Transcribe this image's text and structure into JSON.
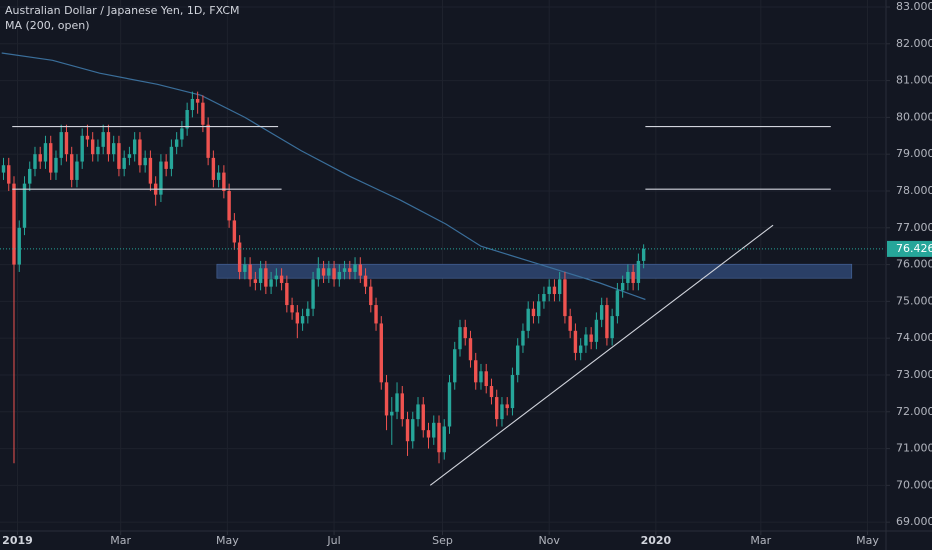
{
  "chart_data": {
    "type": "candlestick",
    "title": "Australian Dollar / Japanese Yen, 1D, FXCM",
    "indicators": [
      {
        "name": "MA (200, open)",
        "color": "#3a6e9a",
        "x": [
          -9,
          20,
          47,
          80,
          105,
          130,
          162,
          190,
          219,
          245,
          265,
          299,
          333,
          359
        ],
        "values": [
          81.75,
          81.55,
          81.2,
          80.9,
          80.6,
          80.0,
          79.1,
          78.4,
          77.75,
          77.1,
          76.5,
          76.0,
          75.5,
          75.05
        ]
      }
    ],
    "up_color": "#26a69a",
    "down_color": "#ef5350",
    "x": [
      -8,
      -5,
      -2,
      1,
      4,
      7,
      10,
      13,
      16,
      19,
      22,
      25,
      28,
      31,
      34,
      37,
      40,
      43,
      46,
      49,
      52,
      55,
      58,
      61,
      64,
      67,
      70,
      73,
      76,
      79,
      82,
      85,
      88,
      91,
      94,
      97,
      100,
      103,
      106,
      109,
      112,
      115,
      118,
      121,
      124,
      127,
      130,
      133,
      136,
      139,
      142,
      145,
      148,
      151,
      154,
      157,
      160,
      163,
      166,
      169,
      172,
      175,
      178,
      181,
      184,
      187,
      190,
      193,
      196,
      199,
      202,
      205,
      208,
      211,
      214,
      217,
      220,
      223,
      226,
      229,
      232,
      235,
      238,
      241,
      244,
      247,
      250,
      253,
      256,
      259,
      262,
      265,
      268,
      271,
      274,
      277,
      280,
      283,
      286,
      289,
      292,
      295,
      298,
      301,
      304,
      307,
      310,
      313,
      316,
      319,
      322,
      325,
      328,
      331,
      334,
      337,
      340,
      343,
      346,
      349,
      352,
      355,
      358
    ],
    "open": [
      78.5,
      78.7,
      78.2,
      76.0,
      77.0,
      78.2,
      78.6,
      79.0,
      78.8,
      79.3,
      78.5,
      78.9,
      79.6,
      79.0,
      78.3,
      78.8,
      79.5,
      79.4,
      79.0,
      79.2,
      79.6,
      79.0,
      79.3,
      78.6,
      78.9,
      79.0,
      79.4,
      78.7,
      78.9,
      78.2,
      77.9,
      78.8,
      78.6,
      79.2,
      79.4,
      79.7,
      80.2,
      80.5,
      80.4,
      79.8,
      78.9,
      78.3,
      78.5,
      78.0,
      77.2,
      76.6,
      75.8,
      76.0,
      75.6,
      75.5,
      75.9,
      75.4,
      75.6,
      75.7,
      75.5,
      74.9,
      74.7,
      74.4,
      74.6,
      74.8,
      75.6,
      75.9,
      75.7,
      75.9,
      75.6,
      75.8,
      75.9,
      75.8,
      76.0,
      75.7,
      75.4,
      74.9,
      74.4,
      72.8,
      71.9,
      72.0,
      72.5,
      71.8,
      71.2,
      71.8,
      72.2,
      71.5,
      71.3,
      71.7,
      70.9,
      71.6,
      72.8,
      73.7,
      74.3,
      74.0,
      73.4,
      72.8,
      73.1,
      72.7,
      72.4,
      71.8,
      72.2,
      72.1,
      73.0,
      73.8,
      74.2,
      74.8,
      74.6,
      75.0,
      75.2,
      75.4,
      75.2,
      75.6,
      74.6,
      74.2,
      73.6,
      73.8,
      74.1,
      73.9,
      74.5,
      74.9,
      74.0,
      74.6,
      75.3,
      75.5,
      75.8,
      75.5,
      76.1
    ],
    "high": [
      78.9,
      78.9,
      78.4,
      77.2,
      78.4,
      78.8,
      79.2,
      79.2,
      79.5,
      79.5,
      79.1,
      79.8,
      79.8,
      79.2,
      79.0,
      79.7,
      79.8,
      79.6,
      79.4,
      79.8,
      79.8,
      79.5,
      79.5,
      79.1,
      79.2,
      79.6,
      79.6,
      79.1,
      79.1,
      78.4,
      79.0,
      79.0,
      79.4,
      79.6,
      79.9,
      80.4,
      80.7,
      80.7,
      80.6,
      80.0,
      79.1,
      78.7,
      78.7,
      78.2,
      77.4,
      76.8,
      76.2,
      76.2,
      75.8,
      76.1,
      76.1,
      75.8,
      75.9,
      75.9,
      75.7,
      75.1,
      74.9,
      74.8,
      75.0,
      75.8,
      76.2,
      76.1,
      76.1,
      76.1,
      76.0,
      76.1,
      76.1,
      76.2,
      76.2,
      75.9,
      75.6,
      75.1,
      74.6,
      73.0,
      72.4,
      72.8,
      72.7,
      72.0,
      72.0,
      72.4,
      72.4,
      71.7,
      71.9,
      71.9,
      71.8,
      73.0,
      73.9,
      74.5,
      74.5,
      74.2,
      73.6,
      73.3,
      73.3,
      72.9,
      72.6,
      72.4,
      72.4,
      73.2,
      74.0,
      74.4,
      75.0,
      75.0,
      75.2,
      75.4,
      75.6,
      75.6,
      75.8,
      75.8,
      74.8,
      74.4,
      74.0,
      74.3,
      74.3,
      74.7,
      75.1,
      75.1,
      74.8,
      75.5,
      75.7,
      76.0,
      76.0,
      76.3,
      76.55
    ],
    "low": [
      78.3,
      78.0,
      70.6,
      75.8,
      76.8,
      78.0,
      78.4,
      78.6,
      78.6,
      78.3,
      78.3,
      78.7,
      78.8,
      78.1,
      78.1,
      78.6,
      79.2,
      78.8,
      78.8,
      79.0,
      78.8,
      78.8,
      78.4,
      78.4,
      78.7,
      78.8,
      78.5,
      78.5,
      78.0,
      77.6,
      77.7,
      78.4,
      78.4,
      79.0,
      79.2,
      79.5,
      80.0,
      80.1,
      79.6,
      78.7,
      78.1,
      78.1,
      77.8,
      77.0,
      76.4,
      75.6,
      75.6,
      75.4,
      75.3,
      75.3,
      75.2,
      75.2,
      75.4,
      75.3,
      74.7,
      74.5,
      74.0,
      74.2,
      74.4,
      74.6,
      75.4,
      75.5,
      75.5,
      75.4,
      75.4,
      75.6,
      75.6,
      75.6,
      75.5,
      75.2,
      74.7,
      74.2,
      72.6,
      71.5,
      71.1,
      71.8,
      71.6,
      70.8,
      71.0,
      71.6,
      71.3,
      71.0,
      71.1,
      70.6,
      70.7,
      71.4,
      72.6,
      73.5,
      73.8,
      73.2,
      72.6,
      72.6,
      72.5,
      72.2,
      71.6,
      71.6,
      71.9,
      71.9,
      72.8,
      73.6,
      74.0,
      74.4,
      74.4,
      74.8,
      75.0,
      75.0,
      75.0,
      74.4,
      74.0,
      73.4,
      73.4,
      73.6,
      73.7,
      73.7,
      74.3,
      73.8,
      73.8,
      74.4,
      75.1,
      75.3,
      75.3,
      75.3,
      75.9
    ],
    "close": [
      78.7,
      78.2,
      76.0,
      77.0,
      78.2,
      78.6,
      79.0,
      78.8,
      79.3,
      78.5,
      78.9,
      79.6,
      79.0,
      78.3,
      78.8,
      79.5,
      79.4,
      79.0,
      79.2,
      79.6,
      79.0,
      79.3,
      78.6,
      78.9,
      79.0,
      79.4,
      78.7,
      78.9,
      78.2,
      77.9,
      78.8,
      78.6,
      79.2,
      79.4,
      79.7,
      80.2,
      80.5,
      80.4,
      79.8,
      78.9,
      78.3,
      78.5,
      78.0,
      77.2,
      76.6,
      75.8,
      76.0,
      75.6,
      75.5,
      75.9,
      75.4,
      75.6,
      75.7,
      75.5,
      74.9,
      74.7,
      74.4,
      74.6,
      74.8,
      75.6,
      75.9,
      75.7,
      75.9,
      75.6,
      75.8,
      75.9,
      75.8,
      76.0,
      75.7,
      75.4,
      74.9,
      74.4,
      72.8,
      71.9,
      72.0,
      72.5,
      71.8,
      71.2,
      71.8,
      72.2,
      71.5,
      71.3,
      71.7,
      70.9,
      71.6,
      72.8,
      73.7,
      74.3,
      74.0,
      73.4,
      72.8,
      73.1,
      72.7,
      72.4,
      71.8,
      72.2,
      72.1,
      73.0,
      73.8,
      74.2,
      74.8,
      74.6,
      75.0,
      75.2,
      75.4,
      75.2,
      75.6,
      74.6,
      74.2,
      73.6,
      73.8,
      74.1,
      73.9,
      74.5,
      74.9,
      74.0,
      74.6,
      75.3,
      75.5,
      75.8,
      75.5,
      76.1,
      76.426
    ],
    "last_price": 76.426,
    "xlim": [
      -10,
      496
    ],
    "ylim": [
      68.76,
      83.19
    ],
    "xticks": [
      {
        "value": 0,
        "label": "2019"
      },
      {
        "value": 59,
        "label": "Mar"
      },
      {
        "value": 120,
        "label": "May"
      },
      {
        "value": 181,
        "label": "Jul"
      },
      {
        "value": 243,
        "label": "Sep"
      },
      {
        "value": 304,
        "label": "Nov"
      },
      {
        "value": 365,
        "label": "2020"
      },
      {
        "value": 425,
        "label": "Mar"
      },
      {
        "value": 486,
        "label": "May"
      }
    ],
    "yticks": [
      {
        "value": 69,
        "label": "69.000"
      },
      {
        "value": 70,
        "label": "70.000"
      },
      {
        "value": 71,
        "label": "71.000"
      },
      {
        "value": 72,
        "label": "72.000"
      },
      {
        "value": 73,
        "label": "73.000"
      },
      {
        "value": 74,
        "label": "74.000"
      },
      {
        "value": 75,
        "label": "75.000"
      },
      {
        "value": 76,
        "label": "76.000"
      },
      {
        "value": 77,
        "label": "77.000"
      },
      {
        "value": 78,
        "label": "78.000"
      },
      {
        "value": 79,
        "label": "79.000"
      },
      {
        "value": 80,
        "label": "80.000"
      },
      {
        "value": 81,
        "label": "81.000"
      },
      {
        "value": 82,
        "label": "82.000"
      },
      {
        "value": 83,
        "label": "83.000"
      }
    ],
    "grid": true,
    "drawings": {
      "lines": [
        {
          "x": [
            -3,
            149
          ],
          "y": [
            79.75,
            79.75
          ],
          "color": "#d1d4dc"
        },
        {
          "x": [
            -3,
            151
          ],
          "y": [
            78.05,
            78.05
          ],
          "color": "#d1d4dc"
        },
        {
          "x": [
            359,
            465
          ],
          "y": [
            79.75,
            79.75
          ],
          "color": "#d1d4dc"
        },
        {
          "x": [
            359,
            465
          ],
          "y": [
            78.05,
            78.05
          ],
          "color": "#d1d4dc"
        },
        {
          "x": [
            236,
            432
          ],
          "y": [
            70.0,
            77.07
          ],
          "color": "#d1d4dc"
        }
      ],
      "zones": [
        {
          "x": [
            114,
            477
          ],
          "y": [
            75.63,
            76.01
          ],
          "color": "#2a3f66"
        }
      ]
    }
  }
}
